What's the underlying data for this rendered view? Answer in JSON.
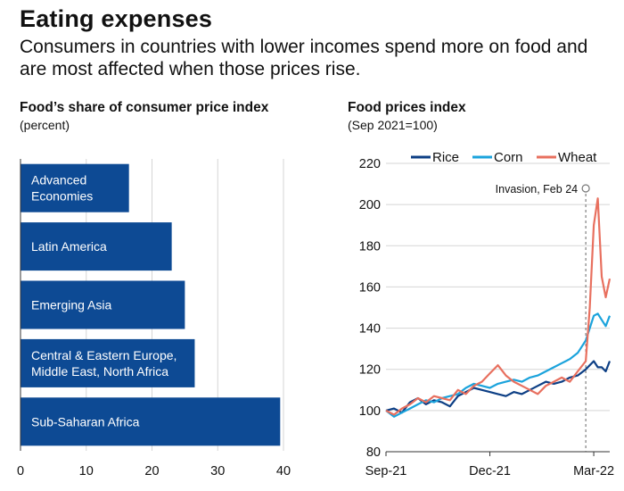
{
  "header": {
    "title": "Eating expenses",
    "subtitle": "Consumers in countries with lower incomes spend more on food and are most affected when those prices rise."
  },
  "colors": {
    "bar": "#0d4a94",
    "rice": "#0d3f85",
    "corn": "#1ba3dc",
    "wheat": "#e8705f",
    "grid": "#d5d5d5"
  },
  "chart_data": [
    {
      "type": "bar",
      "orientation": "horizontal",
      "title": "Food’s share of consumer price index",
      "subtitle": "(percent)",
      "categories": [
        [
          "Advanced",
          "Economies"
        ],
        [
          "Latin America"
        ],
        [
          "Emerging Asia"
        ],
        [
          "Central & Eastern Europe,",
          "Middle East, North Africa"
        ],
        [
          "Sub-Saharan Africa"
        ]
      ],
      "values": [
        16.5,
        23,
        25,
        26.5,
        39.5
      ],
      "xlim": [
        0,
        40
      ],
      "xticks": [
        0,
        10,
        20,
        30,
        40
      ],
      "grid": true
    },
    {
      "type": "line",
      "title": "Food prices index",
      "subtitle": "(Sep 2021=100)",
      "x_ticks": [
        "Sep-21",
        "Dec-21",
        "Mar-22"
      ],
      "x_range": [
        0,
        28
      ],
      "ylim": [
        80,
        220
      ],
      "yticks": [
        80,
        100,
        120,
        140,
        160,
        180,
        200,
        220
      ],
      "legend": "top",
      "annotation": {
        "label": "Invasion, Feb 24",
        "x": 25
      },
      "series": [
        {
          "name": "Rice",
          "x": [
            0,
            1,
            2,
            3,
            4,
            5,
            6,
            7,
            8,
            9,
            10,
            11,
            12,
            13,
            14,
            15,
            16,
            17,
            18,
            19,
            20,
            21,
            22,
            23,
            24,
            25,
            26,
            26.5,
            27,
            27.5,
            28
          ],
          "values": [
            100,
            101,
            99,
            104,
            106,
            103,
            105,
            104,
            102,
            107,
            109,
            111,
            110,
            109,
            108,
            107,
            109,
            108,
            110,
            112,
            114,
            113,
            114,
            116,
            117,
            120,
            124,
            121,
            121,
            119,
            124
          ]
        },
        {
          "name": "Corn",
          "x": [
            0,
            1,
            2,
            3,
            4,
            5,
            6,
            7,
            8,
            9,
            10,
            11,
            12,
            13,
            14,
            15,
            16,
            17,
            18,
            19,
            20,
            21,
            22,
            23,
            24,
            25,
            25.5,
            26,
            26.5,
            27,
            27.5,
            28
          ],
          "values": [
            100,
            97,
            99,
            101,
            103,
            105,
            104,
            106,
            107,
            108,
            111,
            113,
            112,
            111,
            113,
            114,
            115,
            114,
            116,
            117,
            119,
            121,
            123,
            125,
            128,
            134,
            140,
            146,
            147,
            144,
            141,
            146
          ]
        },
        {
          "name": "Wheat",
          "x": [
            0,
            1,
            2,
            3,
            4,
            5,
            6,
            7,
            8,
            9,
            10,
            11,
            12,
            13,
            14,
            15,
            16,
            17,
            18,
            19,
            20,
            21,
            22,
            23,
            24,
            25,
            25.5,
            26,
            26.5,
            27,
            27.5,
            28
          ],
          "values": [
            100,
            98,
            101,
            103,
            106,
            104,
            107,
            106,
            105,
            110,
            108,
            112,
            114,
            118,
            122,
            117,
            114,
            112,
            110,
            108,
            112,
            114,
            116,
            114,
            119,
            124,
            150,
            190,
            203,
            165,
            155,
            164
          ]
        }
      ]
    }
  ]
}
